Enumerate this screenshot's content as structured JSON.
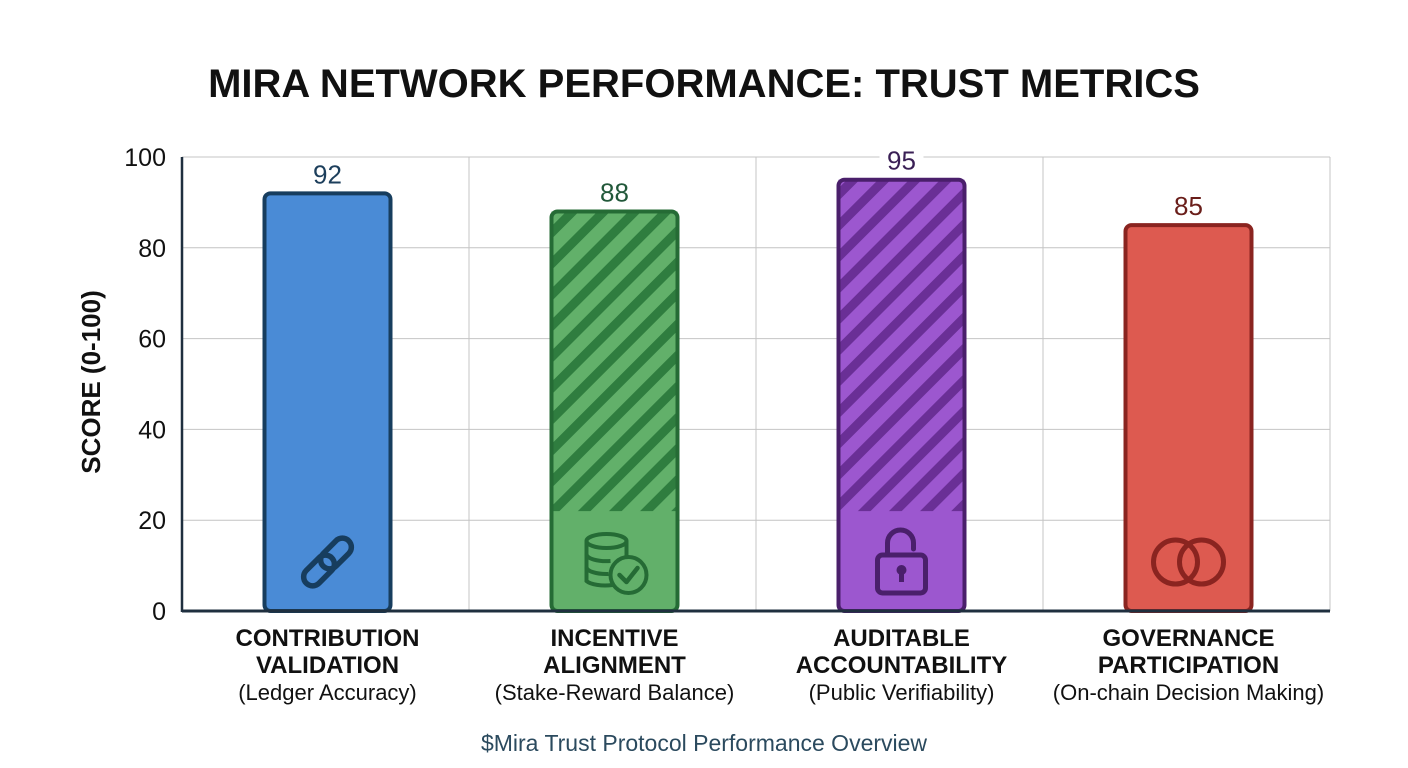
{
  "chart_data": {
    "type": "bar",
    "title": "MIRA NETWORK PERFORMANCE: TRUST METRICS",
    "ylabel": "SCORE (0-100)",
    "xlabel": "",
    "ylim": [
      0,
      100
    ],
    "yticks": [
      0,
      20,
      40,
      60,
      80,
      100
    ],
    "grid": true,
    "categories": [
      {
        "main_line1": "CONTRIBUTION",
        "main_line2": "VALIDATION",
        "sub": "(Ledger Accuracy)"
      },
      {
        "main_line1": "INCENTIVE",
        "main_line2": "ALIGNMENT",
        "sub": "(Stake-Reward Balance)"
      },
      {
        "main_line1": "AUDITABLE",
        "main_line2": "ACCOUNTABILITY",
        "sub": "(Public Verifiability)"
      },
      {
        "main_line1": "GOVERNANCE",
        "main_line2": "PARTICIPATION",
        "sub": "(On-chain Decision Making)"
      }
    ],
    "values": [
      92,
      88,
      95,
      85
    ],
    "value_labels": [
      "92",
      "88",
      "95",
      "85"
    ],
    "bar_styles": [
      {
        "fill": "#4a8bd6",
        "stroke": "#173d5e",
        "label_color": "#1d3f5c",
        "pattern": "solid",
        "icon": "chain-link-icon"
      },
      {
        "fill": "#62b06a",
        "stroke": "#256b35",
        "label_color": "#22583a",
        "pattern": "hatched",
        "icon": "coins-check-icon"
      },
      {
        "fill": "#9c57cf",
        "stroke": "#4a1f6b",
        "label_color": "#3a1f55",
        "pattern": "hatched",
        "icon": "open-padlock-icon"
      },
      {
        "fill": "#dd5a50",
        "stroke": "#8a2420",
        "label_color": "#6a1e1a",
        "pattern": "solid",
        "icon": "interlocking-rings-icon"
      }
    ],
    "caption": "$Mira Trust Protocol Performance Overview"
  }
}
